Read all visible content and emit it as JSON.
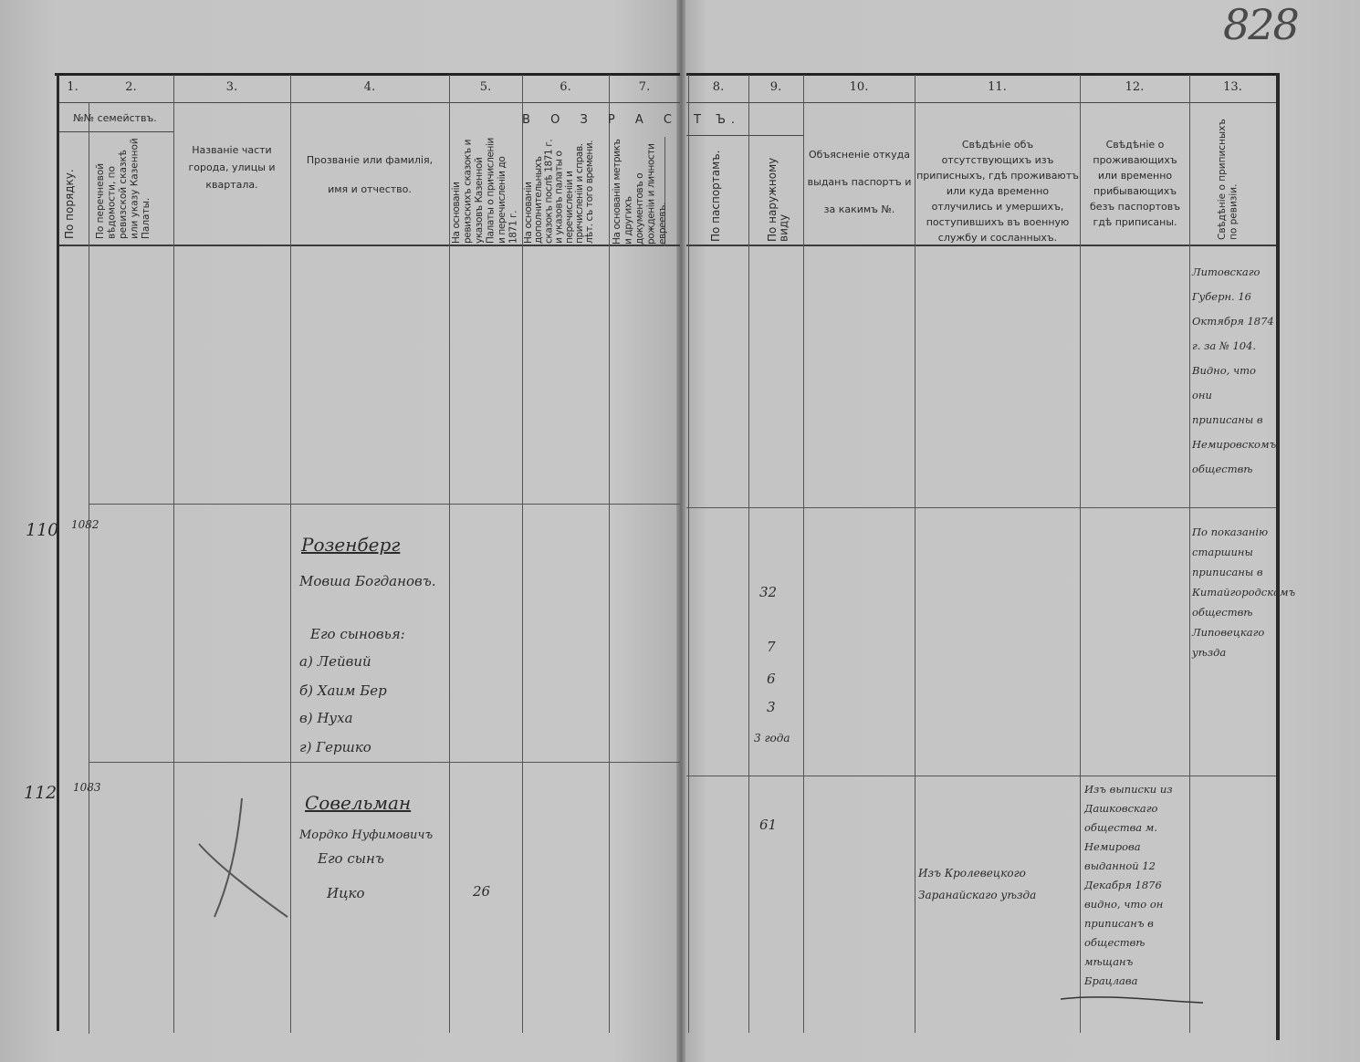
{
  "folio_number": "828",
  "header": {
    "column_numbers": [
      "1.",
      "2.",
      "3.",
      "4.",
      "5.",
      "6.",
      "7.",
      "8.",
      "9.",
      "10.",
      "11.",
      "12.",
      "13."
    ],
    "families_group": "№№ семействъ.",
    "age_group_left": "В О З Р А С",
    "age_group_right": "Т Ъ.",
    "col1": "По порядку.",
    "col2": "По перечневой вѣдомости, по ревизской сказкѣ или указу Казенной Палаты.",
    "col3": "Названіе части города, улицы и квартала.",
    "col4": "Прозваніе или фамилія, имя и отчество.",
    "col5": "На основаніи ревизскихъ сказокъ и указовъ Казенной Палаты о причисленіи и перечисленіи до 1871 г.",
    "col6": "На основаніи дополнительныхъ сказокъ послѣ 1871 г. и указовъ палаты о перечисленіи и причисленіи и справ. лѣт. съ того времени.",
    "col7": "На основаніи метрикъ и другихъ документовъ о рожденіи и личности евреевъ.",
    "col8": "По паспортамъ.",
    "col9": "По наружному виду",
    "col10": "Объясненіе откуда выданъ паспортъ и за какимъ №.",
    "col11": "Свѣдѣніе объ отсутствующихъ изъ приписныхъ, гдѣ проживаютъ или куда временно отлучились и умершихъ, поступившихъ въ военную службу и сосланныхъ.",
    "col12": "Свѣдѣніе о проживающихъ или временно прибывающихъ безъ паспортовъ гдѣ приписаны.",
    "col13": "Свѣдѣніе о приписныхъ по ревизіи."
  },
  "top_note_col13": "Литовскаго Губерн. 16 Октября 1874 г. за № 104. Видно, что они приписаны в Немировскомъ обществѣ",
  "families": [
    {
      "order_no": "110",
      "list_no": "1082",
      "surname": "Розенберг",
      "members": [
        {
          "name": "Мовша Богдановъ.",
          "age_col9": "32"
        },
        {
          "name": "Его сыновья:",
          "age_col9": ""
        },
        {
          "name": "а) Лейвий",
          "age_col9": "7"
        },
        {
          "name": "б) Хаим Бер",
          "age_col9": "6"
        },
        {
          "name": "в) Нуха",
          "age_col9": "3"
        },
        {
          "name": "г) Гершко",
          "age_col9": "3 года"
        }
      ],
      "note_col13": "По показанію старшины приписаны в Китайгородскомъ обществѣ Липовецкаго уѣзда"
    },
    {
      "order_no": "112",
      "list_no": "1083",
      "surname": "Совельман",
      "members": [
        {
          "name": "Мордко Нуфимовичъ",
          "age_col9": "61",
          "age_col5": ""
        },
        {
          "name": "Его сынъ",
          "age_col9": ""
        },
        {
          "name": "Ицко",
          "age_col9": "",
          "age_col5": "26"
        }
      ],
      "note_col11": "Изъ Кролевецкого Заранайскаго уѣзда",
      "note_col12": "Изъ выписки из Дашковскаго общества м. Немирова выданной 12 Декабря 1876 видно, что он приписанъ в обществѣ мѣщанъ Брацлава"
    }
  ]
}
